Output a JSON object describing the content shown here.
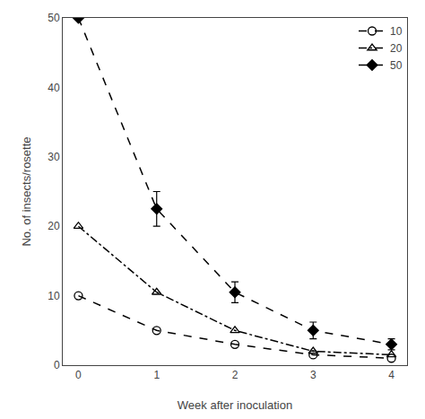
{
  "chart_data": {
    "type": "line",
    "x": [
      0,
      1,
      2,
      3,
      4
    ],
    "series": [
      {
        "name": "10",
        "color": "#000000",
        "marker": "circle-open",
        "line_style": "dash",
        "values": [
          10,
          5,
          3,
          1.5,
          1
        ]
      },
      {
        "name": "20",
        "color": "#000000",
        "marker": "triangle-open",
        "line_style": "dashdot",
        "values": [
          20,
          10.5,
          5,
          2,
          1.5
        ]
      },
      {
        "name": "50",
        "color": "#000000",
        "marker": "diamond",
        "line_style": "dash",
        "values": [
          50,
          22.5,
          10.5,
          5,
          3
        ],
        "errors": [
          null,
          2.5,
          1.5,
          1.2,
          0.8
        ]
      }
    ],
    "xlabel": "Week after inoculation",
    "ylabel": "No. of insects/rosette",
    "xlim": [
      -0.2,
      4.2
    ],
    "ylim": [
      0,
      50
    ],
    "xticks": [
      0,
      1,
      2,
      3,
      4
    ],
    "yticks": [
      0,
      10,
      20,
      30,
      40,
      50
    ],
    "grid": false,
    "legend": "upper right"
  }
}
